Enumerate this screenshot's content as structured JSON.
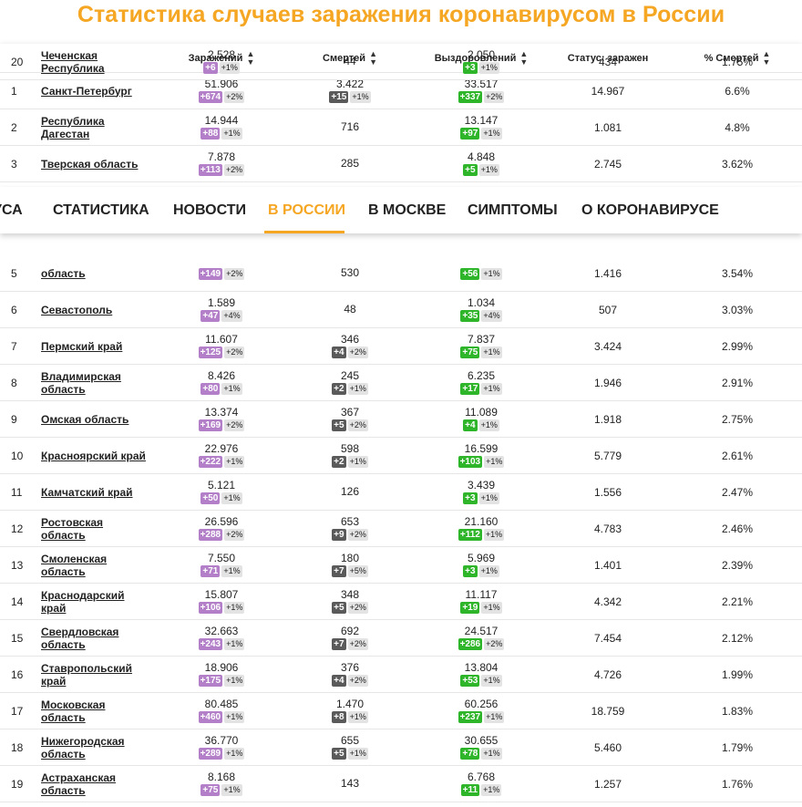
{
  "page": {
    "title": "Статистика случаев заражения коронавирусом в России"
  },
  "colors": {
    "accent": "#f5a623",
    "infections_badge": "#b37fc8",
    "deaths_badge": "#5a5a5a",
    "recovered_badge": "#2fb52a"
  },
  "table": {
    "headers": {
      "infections": "Заражений",
      "deaths": "Смертей",
      "recovered": "Выздоровлений",
      "active": "Статус: заражен",
      "death_pct": "% Смертей",
      "sort_icon": "sort-icon"
    },
    "rows": [
      {
        "rank": "1",
        "name": "Санкт-Петербург",
        "inf": "51.906",
        "inf_d": "+674",
        "inf_p": "+2%",
        "dth": "3.422",
        "dth_d": "+15",
        "dth_p": "+1%",
        "rec": "33.517",
        "rec_d": "+337",
        "rec_p": "+2%",
        "act": "14.967",
        "pct": "6.6%"
      },
      {
        "rank": "2",
        "name": "Республика Дагестан",
        "inf": "14.944",
        "inf_d": "+88",
        "inf_p": "+1%",
        "dth": "716",
        "dth_d": "",
        "dth_p": "",
        "rec": "13.147",
        "rec_d": "+97",
        "rec_p": "+1%",
        "act": "1.081",
        "pct": "4.8%"
      },
      {
        "rank": "3",
        "name": "Тверская область",
        "inf": "7.878",
        "inf_d": "+113",
        "inf_p": "+2%",
        "dth": "285",
        "dth_d": "",
        "dth_p": "",
        "rec": "4.848",
        "rec_d": "+5",
        "rec_p": "+1%",
        "act": "2.745",
        "pct": "3.62%"
      },
      {
        "rank": "5",
        "name": "область",
        "inf": "",
        "inf_d": "+149",
        "inf_p": "+2%",
        "dth": "530",
        "dth_d": "",
        "dth_p": "",
        "rec": "",
        "rec_d": "+56",
        "rec_p": "+1%",
        "act": "1.416",
        "pct": "3.54%"
      },
      {
        "rank": "6",
        "name": "Севастополь",
        "inf": "1.589",
        "inf_d": "+47",
        "inf_p": "+4%",
        "dth": "48",
        "dth_d": "",
        "dth_p": "",
        "rec": "1.034",
        "rec_d": "+35",
        "rec_p": "+4%",
        "act": "507",
        "pct": "3.03%"
      },
      {
        "rank": "7",
        "name": "Пермский край",
        "inf": "11.607",
        "inf_d": "+125",
        "inf_p": "+2%",
        "dth": "346",
        "dth_d": "+4",
        "dth_p": "+2%",
        "rec": "7.837",
        "rec_d": "+75",
        "rec_p": "+1%",
        "act": "3.424",
        "pct": "2.99%"
      },
      {
        "rank": "8",
        "name": "Владимирская область",
        "inf": "8.426",
        "inf_d": "+80",
        "inf_p": "+1%",
        "dth": "245",
        "dth_d": "+2",
        "dth_p": "+1%",
        "rec": "6.235",
        "rec_d": "+17",
        "rec_p": "+1%",
        "act": "1.946",
        "pct": "2.91%"
      },
      {
        "rank": "9",
        "name": "Омская область",
        "inf": "13.374",
        "inf_d": "+169",
        "inf_p": "+2%",
        "dth": "367",
        "dth_d": "+5",
        "dth_p": "+2%",
        "rec": "11.089",
        "rec_d": "+4",
        "rec_p": "+1%",
        "act": "1.918",
        "pct": "2.75%"
      },
      {
        "rank": "10",
        "name": "Красноярский край",
        "inf": "22.976",
        "inf_d": "+222",
        "inf_p": "+1%",
        "dth": "598",
        "dth_d": "+2",
        "dth_p": "+1%",
        "rec": "16.599",
        "rec_d": "+103",
        "rec_p": "+1%",
        "act": "5.779",
        "pct": "2.61%"
      },
      {
        "rank": "11",
        "name": "Камчатский край",
        "inf": "5.121",
        "inf_d": "+50",
        "inf_p": "+1%",
        "dth": "126",
        "dth_d": "",
        "dth_p": "",
        "rec": "3.439",
        "rec_d": "+3",
        "rec_p": "+1%",
        "act": "1.556",
        "pct": "2.47%"
      },
      {
        "rank": "12",
        "name": "Ростовская область",
        "inf": "26.596",
        "inf_d": "+288",
        "inf_p": "+2%",
        "dth": "653",
        "dth_d": "+9",
        "dth_p": "+2%",
        "rec": "21.160",
        "rec_d": "+112",
        "rec_p": "+1%",
        "act": "4.783",
        "pct": "2.46%"
      },
      {
        "rank": "13",
        "name": "Смоленская область",
        "inf": "7.550",
        "inf_d": "+71",
        "inf_p": "+1%",
        "dth": "180",
        "dth_d": "+7",
        "dth_p": "+5%",
        "rec": "5.969",
        "rec_d": "+3",
        "rec_p": "+1%",
        "act": "1.401",
        "pct": "2.39%"
      },
      {
        "rank": "14",
        "name": "Краснодарский край",
        "inf": "15.807",
        "inf_d": "+106",
        "inf_p": "+1%",
        "dth": "348",
        "dth_d": "+5",
        "dth_p": "+2%",
        "rec": "11.117",
        "rec_d": "+19",
        "rec_p": "+1%",
        "act": "4.342",
        "pct": "2.21%"
      },
      {
        "rank": "15",
        "name": "Свердловская область",
        "inf": "32.663",
        "inf_d": "+243",
        "inf_p": "+1%",
        "dth": "692",
        "dth_d": "+7",
        "dth_p": "+2%",
        "rec": "24.517",
        "rec_d": "+286",
        "rec_p": "+2%",
        "act": "7.454",
        "pct": "2.12%"
      },
      {
        "rank": "16",
        "name": "Ставропольский край",
        "inf": "18.906",
        "inf_d": "+175",
        "inf_p": "+1%",
        "dth": "376",
        "dth_d": "+4",
        "dth_p": "+2%",
        "rec": "13.804",
        "rec_d": "+53",
        "rec_p": "+1%",
        "act": "4.726",
        "pct": "1.99%"
      },
      {
        "rank": "17",
        "name": "Московская область",
        "inf": "80.485",
        "inf_d": "+460",
        "inf_p": "+1%",
        "dth": "1.470",
        "dth_d": "+8",
        "dth_p": "+1%",
        "rec": "60.256",
        "rec_d": "+237",
        "rec_p": "+1%",
        "act": "18.759",
        "pct": "1.83%"
      },
      {
        "rank": "18",
        "name": "Нижегородская область",
        "inf": "36.770",
        "inf_d": "+289",
        "inf_p": "+1%",
        "dth": "655",
        "dth_d": "+5",
        "dth_p": "+1%",
        "rec": "30.655",
        "rec_d": "+78",
        "rec_p": "+1%",
        "act": "5.460",
        "pct": "1.79%"
      },
      {
        "rank": "19",
        "name": "Астраханская область",
        "inf": "8.168",
        "inf_d": "+75",
        "inf_p": "+1%",
        "dth": "143",
        "dth_d": "",
        "dth_p": "",
        "rec": "6.768",
        "rec_d": "+11",
        "rec_p": "+1%",
        "act": "1.257",
        "pct": "1.76%"
      },
      {
        "rank": "20",
        "name": "Чеченская Республика",
        "inf": "2.528",
        "inf_d": "+6",
        "inf_p": "+1%",
        "dth": "44",
        "dth_d": "",
        "dth_p": "",
        "rec": "2.050",
        "rec_d": "+3",
        "rec_p": "+1%",
        "act": "434",
        "pct": "1.75%"
      }
    ]
  },
  "nav": {
    "items": [
      {
        "label": "УСА",
        "active": false
      },
      {
        "label": "СТАТИСТИКА",
        "active": false
      },
      {
        "label": "НОВОСТИ",
        "active": false
      },
      {
        "label": "В РОССИИ",
        "active": true
      },
      {
        "label": "В МОСКВЕ",
        "active": false
      },
      {
        "label": "СИМПТОМЫ",
        "active": false
      },
      {
        "label": "О КОРОНАВИРУСЕ",
        "active": false
      }
    ]
  }
}
